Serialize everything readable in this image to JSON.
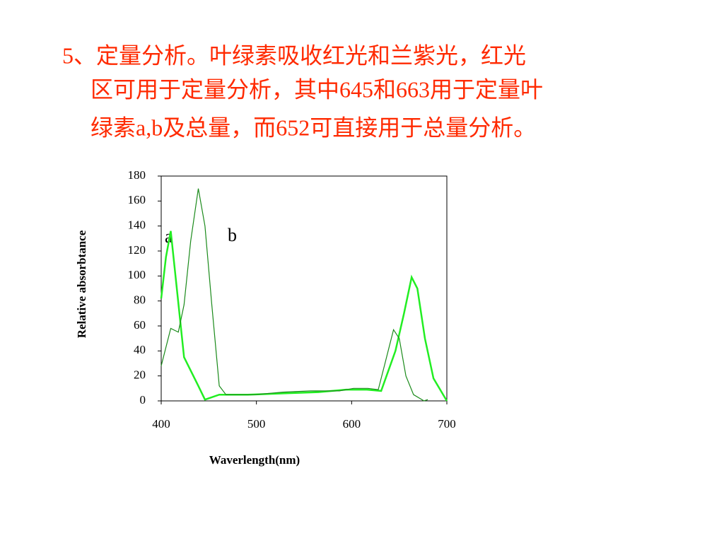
{
  "slide": {
    "lines": [
      "5、定量分析。叶绿素吸收红光和兰紫光，红光",
      "区可用于定量分析，其中645和663用于定量叶",
      "绿素a,b及总量，而652可直接用于总量分析。"
    ]
  },
  "chart_data": {
    "type": "line",
    "x_label": "Waverlength(nm)",
    "y_label": "Relative absorbtance",
    "xlim": [
      400,
      700
    ],
    "xticks": [
      400,
      500,
      600,
      700
    ],
    "ylim": [
      0,
      180
    ],
    "yticks": [
      0,
      20,
      40,
      60,
      80,
      100,
      120,
      140,
      160,
      180
    ],
    "series": [
      {
        "name": "a",
        "color": "#22ee22",
        "x": [
          400,
          405,
          410,
          415,
          424,
          439,
          446,
          461,
          491,
          528,
          565,
          594,
          616,
          631,
          646,
          655,
          663,
          669,
          677,
          686,
          700
        ],
        "values": [
          82,
          115,
          136,
          100,
          35,
          12,
          1,
          5,
          5,
          6,
          7,
          9,
          9,
          8,
          40,
          70,
          99,
          90,
          50,
          18,
          0
        ]
      },
      {
        "name": "b",
        "color": "#1a8a1a",
        "x": [
          400,
          410,
          418,
          424,
          431,
          439,
          446,
          453,
          461,
          468,
          498,
          528,
          557,
          587,
          602,
          617,
          628,
          635,
          644,
          650,
          657,
          665,
          676,
          680
        ],
        "values": [
          28,
          58,
          55,
          77,
          128,
          170,
          140,
          78,
          12,
          5,
          5,
          7,
          8,
          8,
          10,
          10,
          9,
          30,
          57,
          50,
          20,
          5,
          0,
          1
        ]
      }
    ]
  }
}
